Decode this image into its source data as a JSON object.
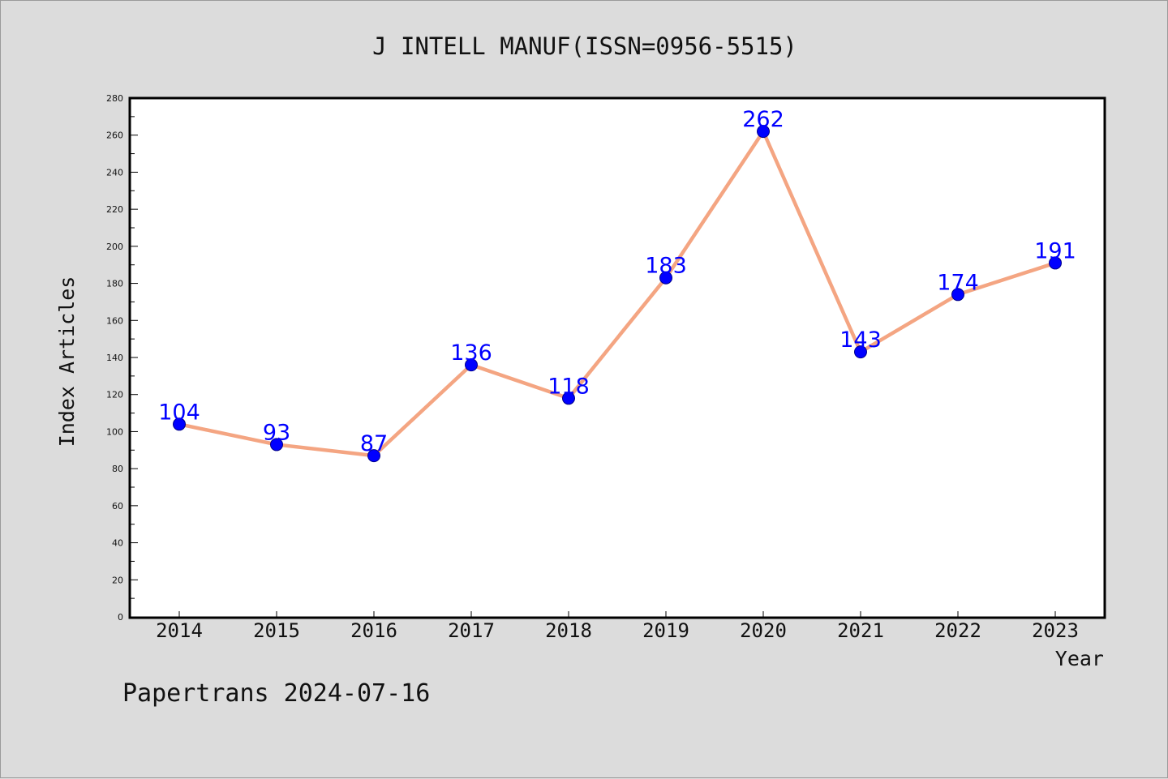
{
  "footer": {
    "text": "Papertrans 2024-07-16"
  },
  "colors": {
    "background": "#dcdcdc",
    "plot_background": "#ffffff",
    "line": "#f4a582",
    "marker": "#0000ff",
    "label": "#0000ff"
  },
  "chart_data": {
    "type": "line",
    "title": "J INTELL MANUF(ISSN=0956-5515)",
    "xlabel": "Year",
    "ylabel": "Index Articles",
    "categories": [
      "2014",
      "2015",
      "2016",
      "2017",
      "2018",
      "2019",
      "2020",
      "2021",
      "2022",
      "2023"
    ],
    "series": [
      {
        "values": [
          104,
          93,
          87,
          136,
          118,
          183,
          262,
          143,
          174,
          191
        ]
      }
    ],
    "ylim": [
      0,
      280
    ],
    "yticks": [
      0,
      20,
      40,
      60,
      80,
      100,
      120,
      140,
      160,
      180,
      200,
      220,
      240,
      260,
      280
    ],
    "grid": false,
    "data_labels": true
  }
}
